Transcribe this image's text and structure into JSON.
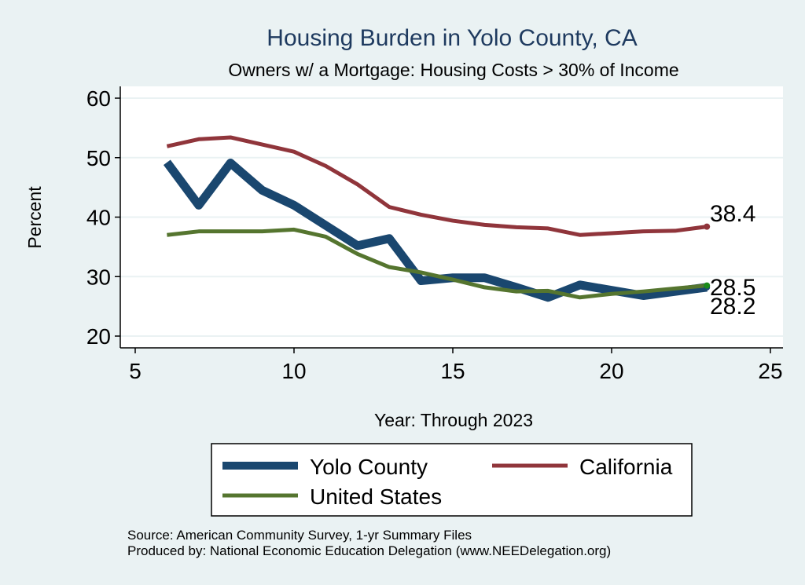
{
  "chart_data": {
    "type": "line",
    "title": "Housing Burden in Yolo County, CA",
    "subtitle": "Owners w/ a Mortgage: Housing Costs > 30% of Income",
    "xlabel": "Year: Through 2023",
    "ylabel": "Percent",
    "xlim": [
      5,
      25
    ],
    "ylim": [
      20,
      60
    ],
    "xticks": [
      5,
      10,
      15,
      20,
      25
    ],
    "yticks": [
      20,
      30,
      40,
      50,
      60
    ],
    "grid": true,
    "legend_position": "bottom",
    "x": [
      6,
      7,
      8,
      9,
      10,
      11,
      12,
      13,
      14,
      15,
      16,
      17,
      18,
      19,
      20,
      21,
      22,
      23
    ],
    "series": [
      {
        "name": "Yolo County",
        "color": "#1a476f",
        "values": [
          49.2,
          42.0,
          49.1,
          44.5,
          42.0,
          38.6,
          35.2,
          36.4,
          29.3,
          29.8,
          29.8,
          28.2,
          26.5,
          28.6,
          27.7,
          26.8,
          27.5,
          28.2
        ]
      },
      {
        "name": "California",
        "color": "#90353b",
        "values": [
          51.9,
          53.1,
          53.4,
          52.2,
          51.0,
          48.6,
          45.5,
          41.7,
          40.4,
          39.4,
          38.7,
          38.3,
          38.1,
          37.0,
          37.3,
          37.6,
          37.7,
          38.4
        ]
      },
      {
        "name": "United States",
        "color": "#55752f",
        "values": [
          37.0,
          37.6,
          37.6,
          37.6,
          37.9,
          36.7,
          33.8,
          31.6,
          30.7,
          29.5,
          28.2,
          27.5,
          27.6,
          26.5,
          27.1,
          27.5,
          28.0,
          28.5
        ]
      }
    ],
    "end_labels": [
      "38.4",
      "28.5",
      "28.2"
    ],
    "notes": [
      "Source: American Community Survey, 1-yr Summary Files",
      "Produced by: National Economic Education Delegation (www.NEEDelegation.org)"
    ]
  }
}
